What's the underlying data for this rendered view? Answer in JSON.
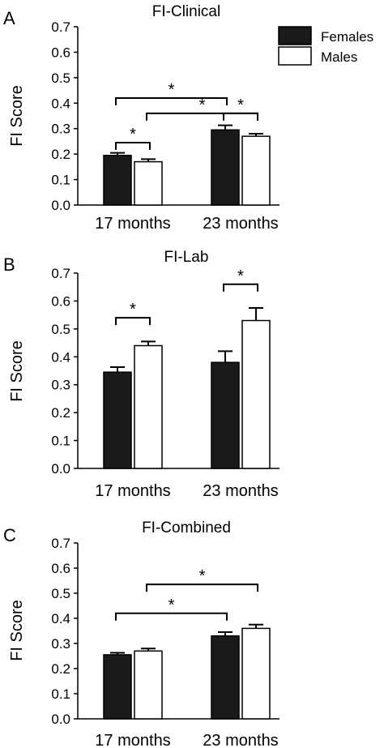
{
  "legend": {
    "entries": [
      {
        "label": "Females",
        "fill": "#1a1a1a"
      },
      {
        "label": "Males",
        "fill": "#ffffff"
      }
    ]
  },
  "chart_data": [
    {
      "type": "bar",
      "panel": "A",
      "title": "FI-Clinical",
      "ylabel": "FI Score",
      "xlabel": "",
      "ylim": [
        0,
        0.7
      ],
      "yticks": [
        "0.0",
        "0.1",
        "0.2",
        "0.3",
        "0.4",
        "0.5",
        "0.6",
        "0.7"
      ],
      "categories": [
        "17 months",
        "23 months"
      ],
      "series": [
        {
          "name": "Females",
          "values": [
            0.195,
            0.295
          ],
          "errors": [
            0.01,
            0.018
          ]
        },
        {
          "name": "Males",
          "values": [
            0.17,
            0.27
          ],
          "errors": [
            0.01,
            0.01
          ]
        }
      ],
      "significance": [
        {
          "label": "*",
          "from": "17 months/Females",
          "to": "17 months/Males"
        },
        {
          "label": "*",
          "from": "17 months/Females",
          "to": "23 months/Females"
        },
        {
          "label": "*",
          "from": "17 months/Males",
          "to": "23 months/Males"
        },
        {
          "label": "*",
          "from": "23 months/Females",
          "to": "23 months/Males"
        }
      ]
    },
    {
      "type": "bar",
      "panel": "B",
      "title": "FI-Lab",
      "ylabel": "FI Score",
      "xlabel": "",
      "ylim": [
        0,
        0.7
      ],
      "yticks": [
        "0.0",
        "0.1",
        "0.2",
        "0.3",
        "0.4",
        "0.5",
        "0.6",
        "0.7"
      ],
      "categories": [
        "17 months",
        "23 months"
      ],
      "series": [
        {
          "name": "Females",
          "values": [
            0.345,
            0.38
          ],
          "errors": [
            0.018,
            0.04
          ]
        },
        {
          "name": "Males",
          "values": [
            0.44,
            0.53
          ],
          "errors": [
            0.015,
            0.045
          ]
        }
      ],
      "significance": [
        {
          "label": "*",
          "from": "17 months/Females",
          "to": "17 months/Males"
        },
        {
          "label": "*",
          "from": "23 months/Females",
          "to": "23 months/Males"
        }
      ]
    },
    {
      "type": "bar",
      "panel": "C",
      "title": "FI-Combined",
      "ylabel": "FI Score",
      "xlabel": "",
      "ylim": [
        0,
        0.7
      ],
      "yticks": [
        "0.0",
        "0.1",
        "0.2",
        "0.3",
        "0.4",
        "0.5",
        "0.6",
        "0.7"
      ],
      "categories": [
        "17 months",
        "23 months"
      ],
      "series": [
        {
          "name": "Females",
          "values": [
            0.255,
            0.33
          ],
          "errors": [
            0.008,
            0.015
          ]
        },
        {
          "name": "Males",
          "values": [
            0.27,
            0.36
          ],
          "errors": [
            0.01,
            0.015
          ]
        }
      ],
      "significance": [
        {
          "label": "*",
          "from": "17 months/Females",
          "to": "23 months/Females"
        },
        {
          "label": "*",
          "from": "17 months/Males",
          "to": "23 months/Males"
        }
      ]
    }
  ]
}
